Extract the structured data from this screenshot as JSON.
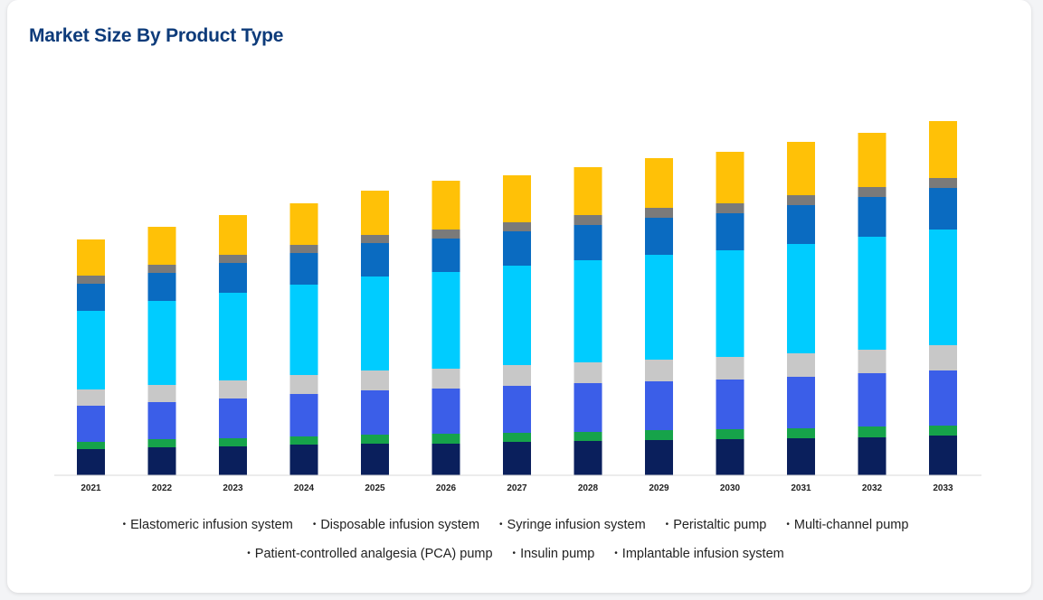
{
  "title": "Market Size By Product Type",
  "chart_data": {
    "type": "bar",
    "stacked": true,
    "categories": [
      "2021",
      "2022",
      "2023",
      "2024",
      "2025",
      "2026",
      "2027",
      "2028",
      "2029",
      "2030",
      "2031",
      "2032",
      "2033"
    ],
    "series": [
      {
        "name": "Elastomeric infusion system",
        "color": "#0a1f5c",
        "values": [
          29,
          31,
          32,
          34,
          35,
          35,
          37,
          38,
          39,
          40,
          41,
          42,
          44
        ]
      },
      {
        "name": "Disposable infusion system",
        "color": "#16a34a",
        "values": [
          8,
          9,
          9,
          9,
          10,
          11,
          10,
          10,
          11,
          11,
          11,
          12,
          11
        ]
      },
      {
        "name": "Syringe infusion system",
        "color": "#3b5ee8",
        "values": [
          40,
          41,
          44,
          47,
          49,
          50,
          52,
          54,
          54,
          55,
          57,
          59,
          61
        ]
      },
      {
        "name": "Peristaltic pump",
        "color": "#c8c8c8",
        "values": [
          18,
          19,
          20,
          21,
          22,
          22,
          23,
          23,
          24,
          25,
          26,
          26,
          28
        ]
      },
      {
        "name": "Multi-channel pump",
        "color": "#00ccff",
        "values": [
          87,
          93,
          97,
          100,
          104,
          107,
          110,
          113,
          116,
          118,
          121,
          125,
          128
        ]
      },
      {
        "name": "Patient-controlled analgesia (PCA) pump",
        "color": "#0a6bc1",
        "values": [
          30,
          31,
          33,
          35,
          37,
          37,
          38,
          39,
          41,
          41,
          43,
          44,
          46
        ]
      },
      {
        "name": "Insulin pump",
        "color": "#7a7a7a",
        "values": [
          9,
          9,
          9,
          9,
          9,
          10,
          10,
          11,
          11,
          11,
          11,
          11,
          11
        ]
      },
      {
        "name": "Implantable infusion system",
        "color": "#ffc107",
        "values": [
          40,
          42,
          44,
          46,
          49,
          54,
          52,
          53,
          55,
          57,
          59,
          60,
          63
        ]
      }
    ],
    "ylim": [
      0,
      400
    ],
    "grid": false,
    "legend": "bottom"
  }
}
